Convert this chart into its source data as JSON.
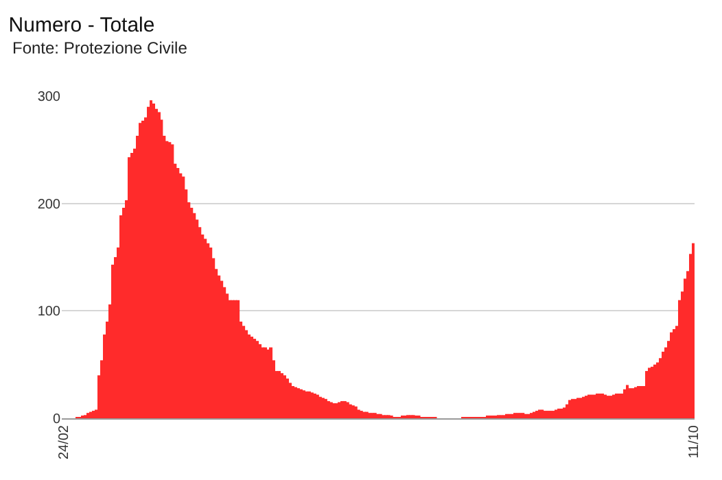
{
  "chart_data": {
    "type": "bar",
    "title": "Numero - Totale",
    "subtitle": "Fonte: Protezione Civile",
    "categories": [
      "24/02",
      null,
      null,
      null,
      null,
      null,
      null,
      null,
      null,
      null,
      null,
      null,
      null,
      null,
      null,
      null,
      null,
      null,
      null,
      null,
      null,
      null,
      null,
      null,
      null,
      null,
      null,
      null,
      null,
      null,
      null,
      null,
      null,
      null,
      null,
      null,
      null,
      null,
      null,
      null,
      null,
      null,
      null,
      null,
      null,
      null,
      null,
      null,
      null,
      null,
      null,
      null,
      null,
      null,
      null,
      null,
      null,
      null,
      null,
      null,
      null,
      null,
      null,
      null,
      null,
      null,
      null,
      null,
      null,
      null,
      null,
      null,
      null,
      null,
      null,
      null,
      null,
      null,
      null,
      null,
      null,
      null,
      null,
      null,
      null,
      null,
      null,
      null,
      null,
      null,
      null,
      null,
      null,
      null,
      null,
      null,
      null,
      null,
      null,
      null,
      null,
      null,
      null,
      null,
      null,
      null,
      null,
      null,
      null,
      null,
      null,
      null,
      null,
      null,
      null,
      null,
      null,
      null,
      null,
      null,
      null,
      null,
      null,
      null,
      null,
      null,
      null,
      null,
      null,
      null,
      null,
      null,
      null,
      null,
      null,
      null,
      null,
      null,
      null,
      null,
      null,
      null,
      null,
      null,
      null,
      null,
      null,
      null,
      null,
      null,
      null,
      null,
      null,
      null,
      null,
      null,
      null,
      null,
      null,
      null,
      null,
      null,
      null,
      null,
      null,
      null,
      null,
      null,
      null,
      null,
      null,
      null,
      null,
      null,
      null,
      null,
      null,
      null,
      null,
      null,
      null,
      null,
      null,
      null,
      null,
      null,
      null,
      null,
      null,
      null,
      null,
      null,
      null,
      null,
      null,
      null,
      null,
      null,
      null,
      null,
      null,
      null,
      null,
      null,
      null,
      null,
      null,
      null,
      null,
      null,
      null,
      null,
      null,
      null,
      null,
      null,
      null,
      null,
      null,
      null,
      null,
      null,
      null,
      null,
      null,
      null,
      null,
      null,
      null,
      null,
      "11/10"
    ],
    "values": [
      0,
      0,
      0,
      0,
      0,
      1,
      1,
      2,
      3,
      5,
      6,
      7,
      8,
      40,
      54,
      78,
      90,
      106,
      143,
      150,
      159,
      189,
      196,
      203,
      243,
      247,
      251,
      263,
      275,
      277,
      280,
      290,
      296,
      293,
      288,
      285,
      278,
      263,
      258,
      257,
      255,
      237,
      233,
      228,
      225,
      213,
      201,
      196,
      191,
      185,
      178,
      171,
      167,
      163,
      159,
      149,
      139,
      133,
      128,
      122,
      116,
      110,
      110,
      110,
      110,
      90,
      86,
      82,
      78,
      76,
      74,
      72,
      69,
      66,
      66,
      64,
      66,
      54,
      44,
      44,
      42,
      40,
      37,
      33,
      30,
      29,
      28,
      27,
      26,
      25,
      25,
      24,
      23,
      22,
      20,
      19,
      18,
      16,
      15,
      14,
      14,
      15,
      16,
      16,
      15,
      13,
      12,
      11,
      8,
      7,
      6,
      6,
      5,
      5,
      5,
      4,
      4,
      3,
      3,
      3,
      2,
      1,
      1,
      1,
      2,
      2,
      3,
      3,
      3,
      2,
      2,
      1,
      1,
      1,
      1,
      1,
      1,
      0,
      0,
      0,
      0,
      0,
      0,
      0,
      0,
      0,
      1,
      1,
      1,
      1,
      1,
      1,
      1,
      1,
      1,
      2,
      2,
      2,
      2,
      3,
      3,
      3,
      4,
      4,
      4,
      5,
      5,
      5,
      5,
      4,
      4,
      5,
      6,
      7,
      8,
      8,
      7,
      7,
      7,
      7,
      8,
      9,
      9,
      10,
      13,
      17,
      18,
      18,
      19,
      19,
      20,
      21,
      22,
      22,
      22,
      23,
      23,
      23,
      22,
      21,
      21,
      22,
      23,
      23,
      23,
      27,
      31,
      28,
      28,
      29,
      30,
      30,
      30,
      44,
      47,
      48,
      50,
      52,
      56,
      62,
      66,
      72,
      80,
      83,
      86,
      110,
      118,
      130,
      137,
      153,
      163
    ],
    "color": "#ff2b2b",
    "ylim": [
      0,
      300
    ],
    "yticks": [
      0,
      100,
      200,
      300
    ],
    "grid": "y",
    "legend": false
  }
}
